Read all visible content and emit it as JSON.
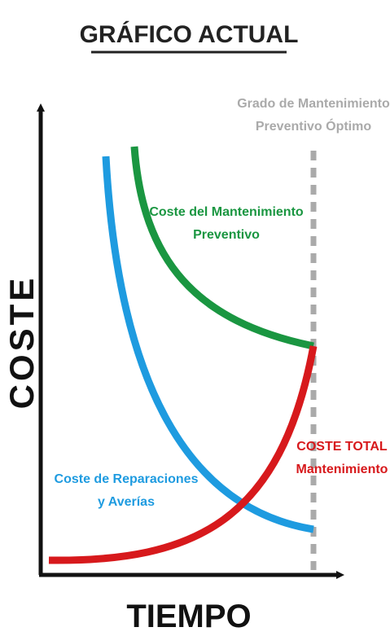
{
  "header": {
    "title": "GRÁFICO ACTUAL"
  },
  "axes": {
    "y_label": "COSTE",
    "x_label": "TIEMPO"
  },
  "optimum": {
    "lines": [
      "Grado de Mantenimiento",
      "Preventivo Óptimo"
    ]
  },
  "curves": [
    {
      "lines": [
        "Coste del Mantenimiento",
        "Preventivo"
      ]
    },
    {
      "lines": [
        "Coste de Reparaciones",
        "y Averías"
      ]
    },
    {
      "lines": [
        "COSTE TOTAL",
        "Mantenimiento"
      ]
    }
  ]
}
